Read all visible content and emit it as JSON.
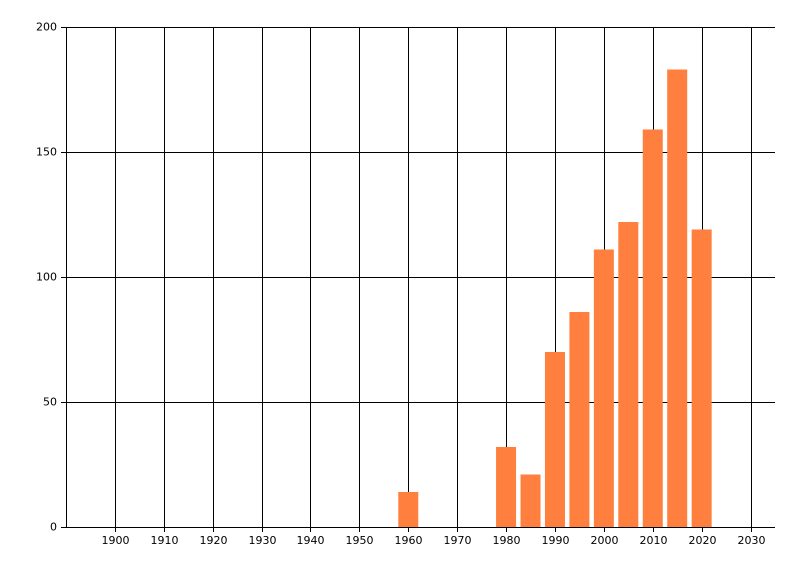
{
  "chart_data": {
    "type": "bar",
    "x": [
      1960,
      1980,
      1985,
      1990,
      1995,
      2000,
      2005,
      2010,
      2015,
      2020
    ],
    "values": [
      14,
      32,
      21,
      70,
      86,
      111,
      122,
      159,
      183,
      119
    ],
    "color": "#ff7f3f",
    "xlim": [
      1890,
      2035
    ],
    "xticks": [
      1900,
      1910,
      1920,
      1930,
      1940,
      1950,
      1960,
      1970,
      1980,
      1990,
      2000,
      2010,
      2020,
      2030
    ],
    "ylim": [
      0,
      200
    ],
    "yticks": [
      0,
      50,
      100,
      150,
      200
    ],
    "grid": true
  }
}
